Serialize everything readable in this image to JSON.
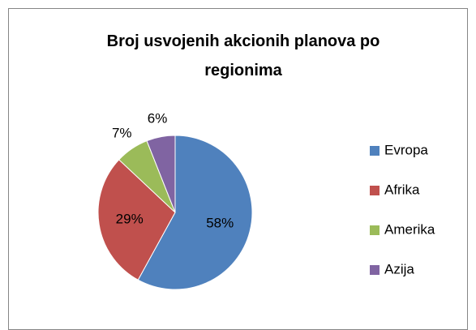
{
  "chart_data": {
    "type": "pie",
    "title": "Broj usvojenih akcionih planova po regionima",
    "categories": [
      "Evropa",
      "Afrika",
      "Amerika",
      "Azija"
    ],
    "values": [
      58,
      29,
      7,
      6
    ],
    "value_labels": [
      "58%",
      "29%",
      "7%",
      "6%"
    ],
    "colors": [
      "#4f81bd",
      "#c0504d",
      "#9bbb59",
      "#8064a2"
    ],
    "legend": "right"
  }
}
